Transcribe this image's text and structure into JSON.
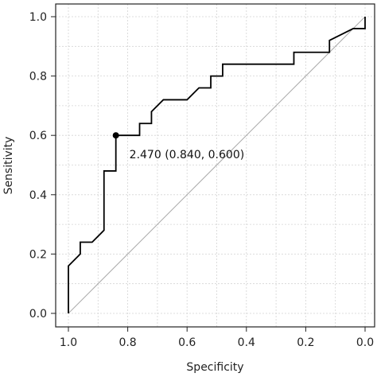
{
  "chart_data": {
    "type": "line",
    "title": "",
    "xlabel": "Specificity",
    "ylabel": "Sensitivity",
    "xlim": [
      1.0,
      0.0
    ],
    "ylim": [
      0.0,
      1.0
    ],
    "x_reversed": true,
    "grid": true,
    "grid_style": "dotted",
    "x_ticks": [
      1.0,
      0.8,
      0.6,
      0.4,
      0.2,
      0.0
    ],
    "x_tick_labels": [
      "1.0",
      "0.8",
      "0.6",
      "0.4",
      "0.2",
      "0.0"
    ],
    "y_ticks": [
      0.0,
      0.2,
      0.4,
      0.6,
      0.8,
      1.0
    ],
    "y_tick_labels": [
      "0.0",
      "0.2",
      "0.4",
      "0.6",
      "0.8",
      "1.0"
    ],
    "x_minor_ticks": [
      0.9,
      0.7,
      0.5,
      0.3,
      0.1
    ],
    "y_minor_ticks": [
      0.1,
      0.3,
      0.5,
      0.7,
      0.9
    ],
    "series": [
      {
        "color": "#000000",
        "x": [
          1.0,
          1.0,
          0.96,
          0.96,
          0.92,
          0.88,
          0.88,
          0.84,
          0.84,
          0.76,
          0.76,
          0.72,
          0.72,
          0.68,
          0.6,
          0.56,
          0.56,
          0.52,
          0.52,
          0.48,
          0.48,
          0.24,
          0.24,
          0.12,
          0.12,
          0.04,
          0.04,
          0.0,
          0.0
        ],
        "y": [
          0.0,
          0.16,
          0.2,
          0.24,
          0.24,
          0.28,
          0.48,
          0.48,
          0.6,
          0.6,
          0.64,
          0.64,
          0.68,
          0.72,
          0.72,
          0.76,
          0.76,
          0.76,
          0.8,
          0.8,
          0.84,
          0.84,
          0.88,
          0.88,
          0.92,
          0.96,
          0.96,
          0.96,
          1.0
        ]
      }
    ],
    "reference_line": {
      "color": "#aaaaaa",
      "x": [
        1.0,
        0.0
      ],
      "y": [
        0.0,
        1.0
      ]
    },
    "highlight_point": {
      "x": 0.84,
      "y": 0.6,
      "label": "2.470 (0.840, 0.600)"
    }
  }
}
